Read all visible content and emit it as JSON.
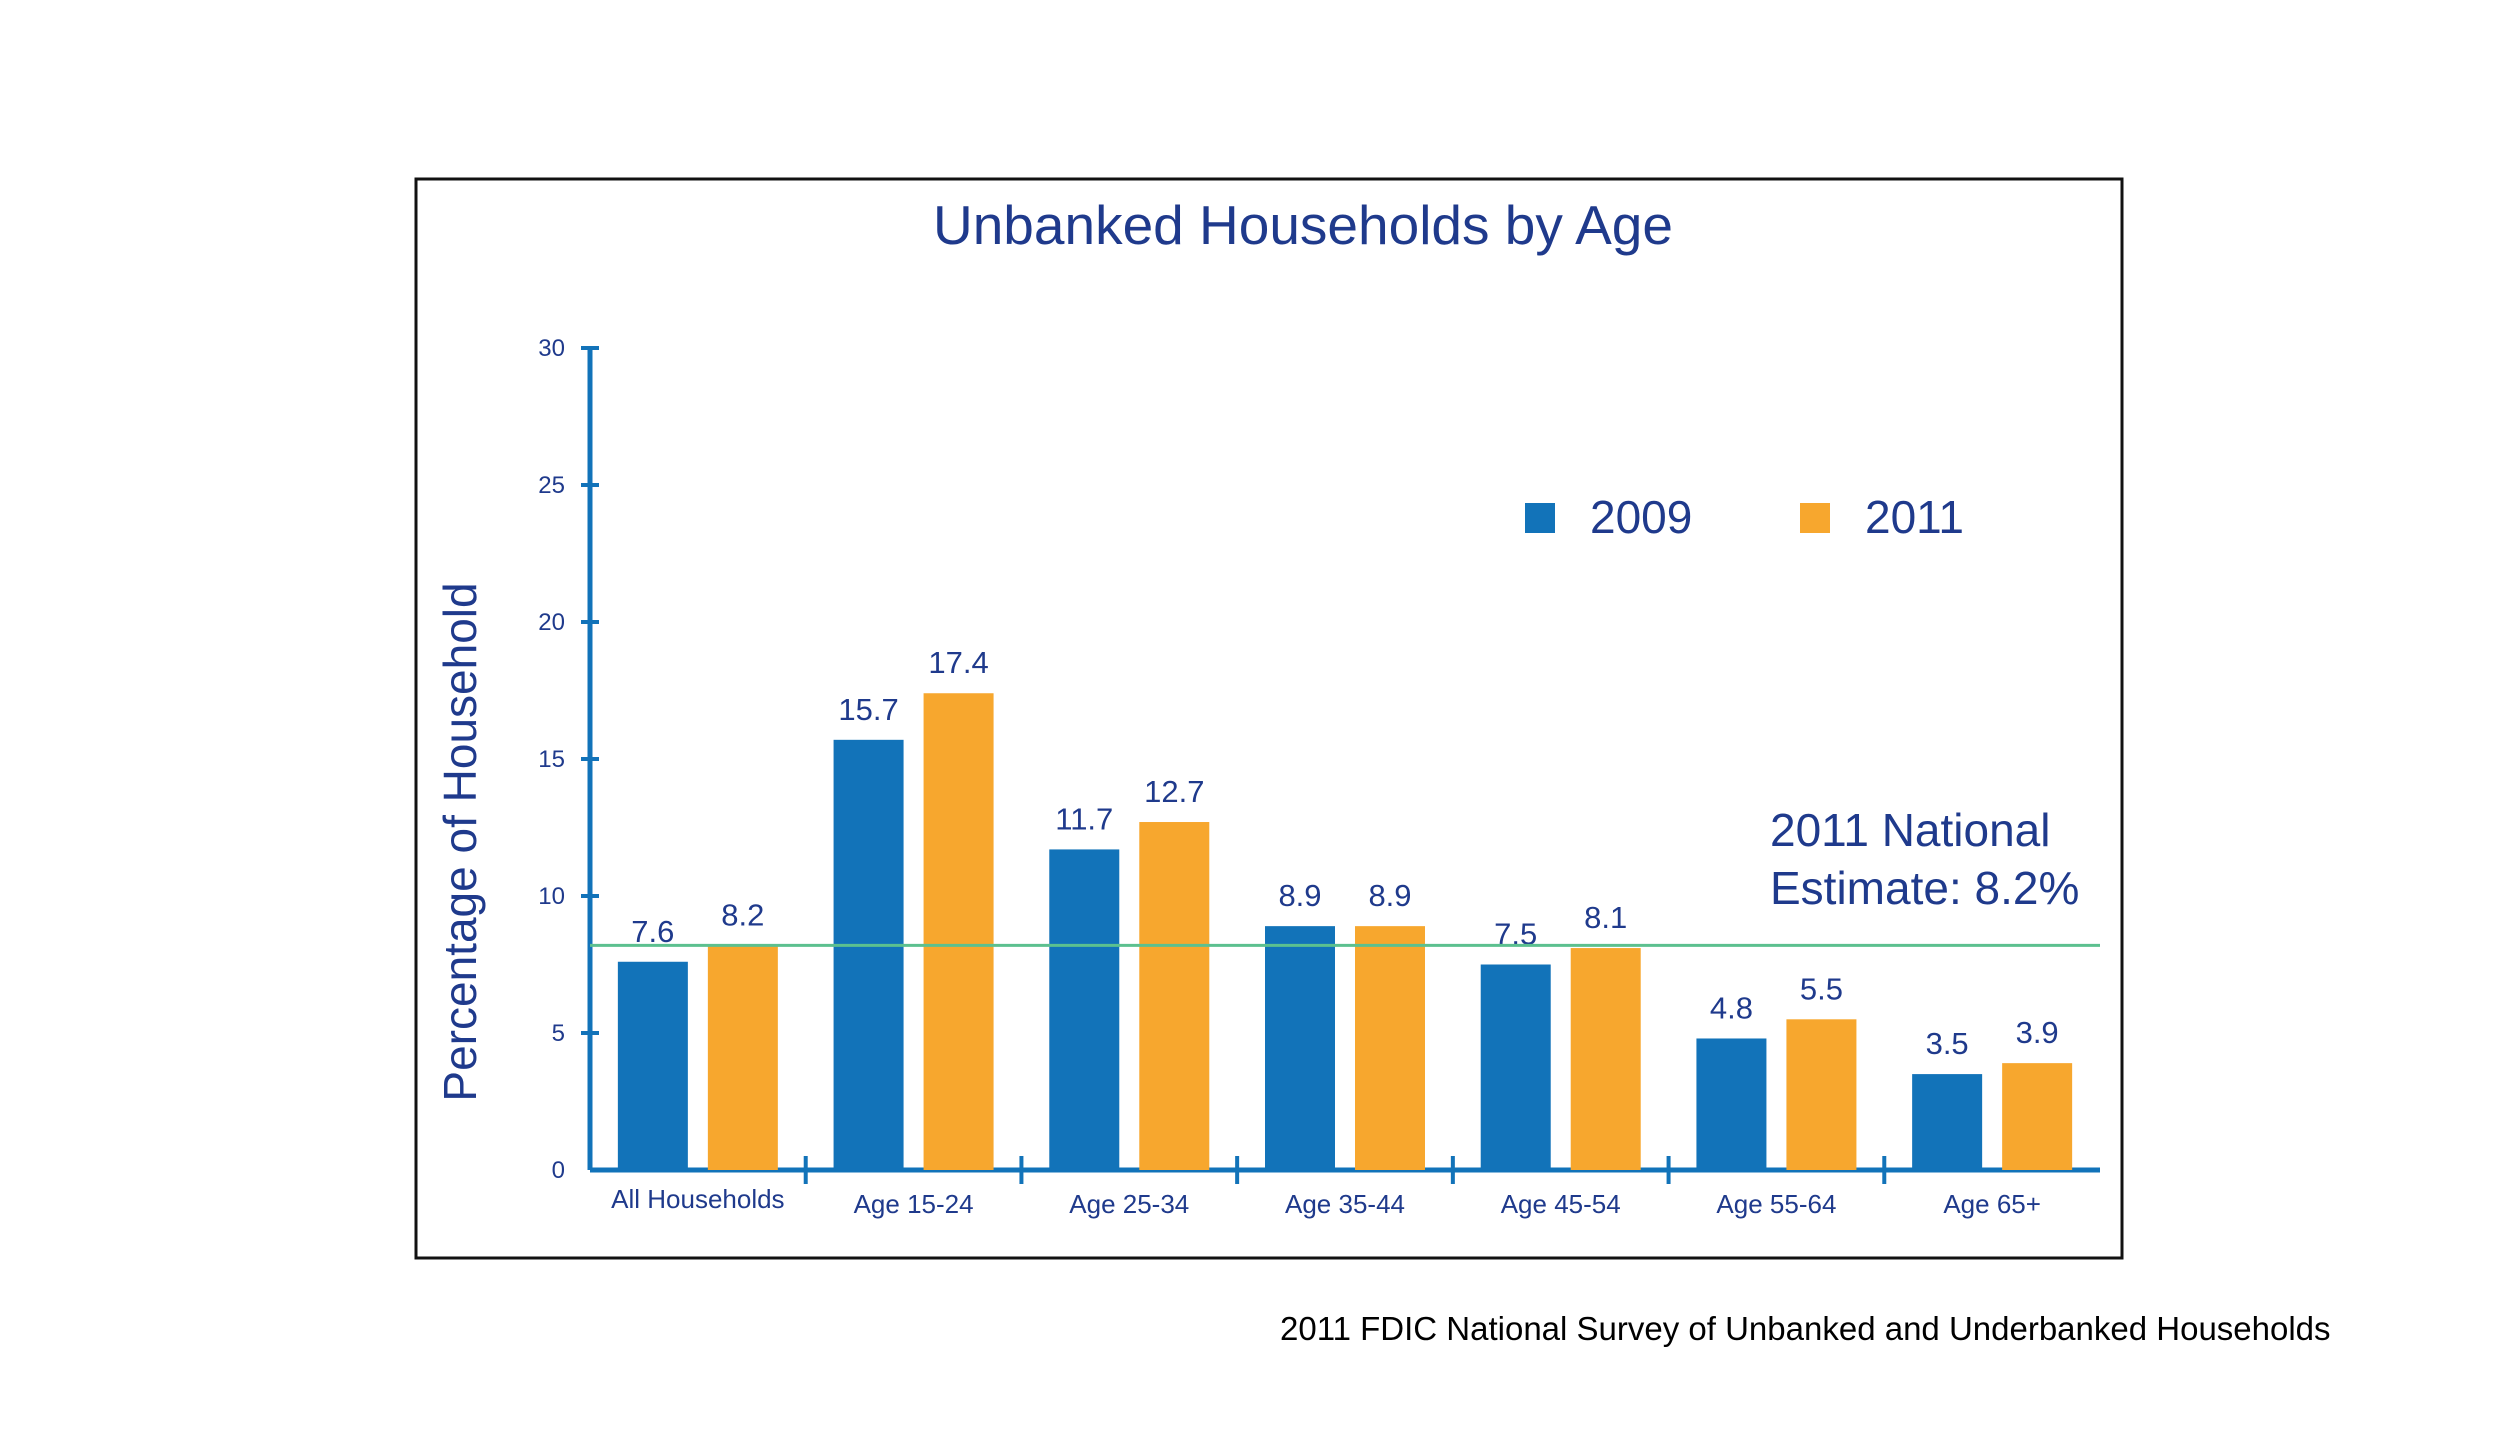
{
  "chart_data": {
    "type": "bar",
    "title": "Unbanked Households by Age",
    "xlabel": "",
    "ylabel": "Percentage of Household",
    "ylim": [
      0,
      30
    ],
    "yticks": [
      0,
      5,
      10,
      15,
      20,
      25,
      30
    ],
    "categories": [
      "All Households",
      "Age 15-24",
      "Age 25-34",
      "Age 35-44",
      "Age 45-54",
      "Age 55-64",
      "Age 65+"
    ],
    "series": [
      {
        "name": "2009",
        "color": "#1273b9",
        "values": [
          7.6,
          15.7,
          11.7,
          8.9,
          7.5,
          4.8,
          3.5
        ]
      },
      {
        "name": "2011",
        "color": "#f7a72e",
        "values": [
          8.2,
          17.4,
          12.7,
          8.9,
          8.1,
          5.5,
          3.9
        ]
      }
    ],
    "value_labels": [
      [
        "7.6",
        "15.7",
        "11.7",
        "8.9",
        "7.5",
        "4.8",
        "3.5"
      ],
      [
        "8.2",
        "17.4",
        "12.7",
        "8.9",
        "8.1",
        "5.5",
        "3.9"
      ]
    ],
    "reference_line": {
      "value": 8.2,
      "color": "#5cc08f"
    },
    "annotation": [
      "2011 National",
      "Estimate: 8.2%"
    ],
    "legend_position": "top-right",
    "grid": false,
    "axis_color": "#1273b9"
  },
  "source": "2011 FDIC National Survey of Unbanked and Underbanked Households"
}
